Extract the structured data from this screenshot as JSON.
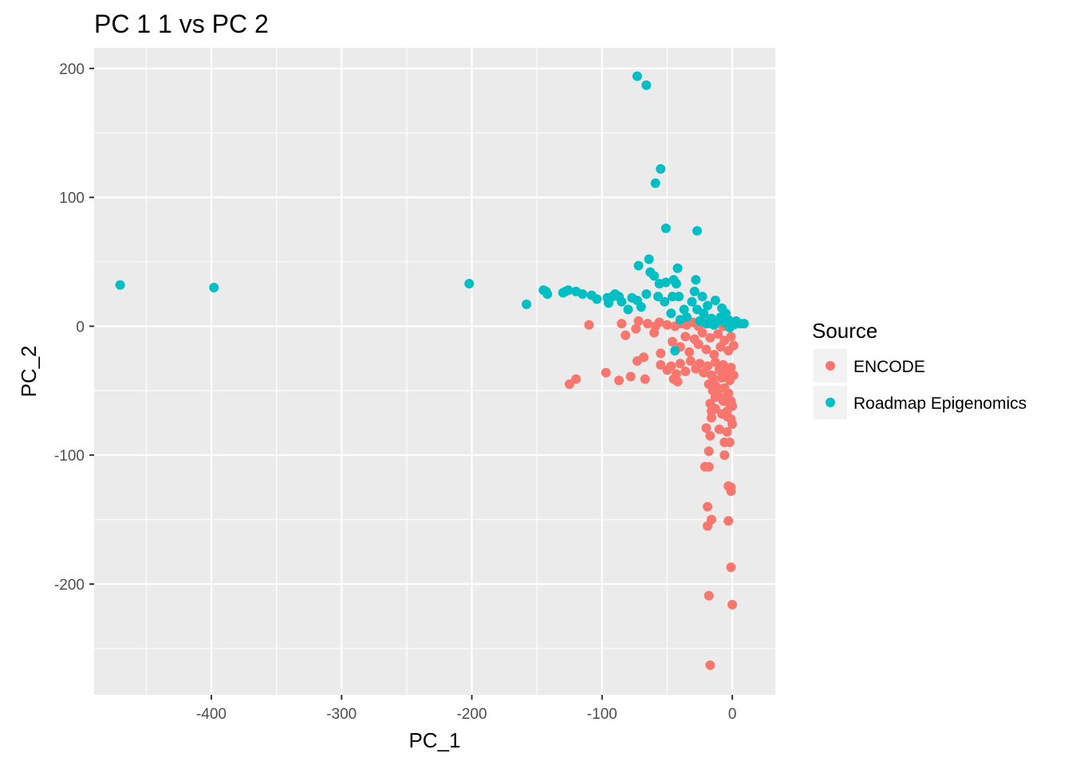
{
  "chart_data": {
    "type": "scatter",
    "title": "PC 1  1 vs PC 2",
    "xlabel": "PC_1",
    "ylabel": "PC_2",
    "xlim": [
      -490,
      33
    ],
    "ylim": [
      -286,
      216
    ],
    "x_ticks": [
      -400,
      -300,
      -200,
      -100,
      0
    ],
    "y_ticks": [
      200,
      100,
      0,
      -100,
      -200
    ],
    "x_minor": [
      -450,
      -350,
      -250,
      -150,
      -50
    ],
    "y_minor": [
      150,
      50,
      -50,
      -150,
      -250
    ],
    "grid": true,
    "legend": {
      "title": "Source",
      "position": "right"
    },
    "colors": {
      "panel": "#ebebeb",
      "grid": "#ffffff",
      "ENCODE": "#F8766D",
      "Roadmap Epigenomics": "#00BFC4"
    },
    "series": [
      {
        "name": "ENCODE",
        "color": "#F8766D",
        "points": [
          [
            -110,
            1
          ],
          [
            -85,
            2
          ],
          [
            -72,
            4
          ],
          [
            -65,
            2
          ],
          [
            -59,
            0
          ],
          [
            -74,
            -2
          ],
          [
            -56,
            3
          ],
          [
            -50,
            1
          ],
          [
            -44,
            0
          ],
          [
            -39,
            2
          ],
          [
            -35,
            1
          ],
          [
            -30,
            3
          ],
          [
            -26,
            0
          ],
          [
            -22,
            4
          ],
          [
            -18,
            2
          ],
          [
            -14,
            1
          ],
          [
            -11,
            3
          ],
          [
            -7,
            0
          ],
          [
            -4,
            2
          ],
          [
            -1,
            1
          ],
          [
            -82,
            -7
          ],
          [
            -60,
            -5
          ],
          [
            -55,
            -21
          ],
          [
            -46,
            -12
          ],
          [
            -40,
            -16
          ],
          [
            -36,
            -8
          ],
          [
            -33,
            -20
          ],
          [
            -29,
            -10
          ],
          [
            -26,
            -14
          ],
          [
            -23,
            -5
          ],
          [
            -20,
            -18
          ],
          [
            -17,
            -9
          ],
          [
            -14,
            -22
          ],
          [
            -11,
            -6
          ],
          [
            -9,
            -16
          ],
          [
            -6,
            -11
          ],
          [
            -3,
            -19
          ],
          [
            -1,
            -8
          ],
          [
            1,
            -15
          ],
          [
            -73,
            -27
          ],
          [
            -68,
            -24
          ],
          [
            -55,
            -30
          ],
          [
            -50,
            -34
          ],
          [
            -47,
            -31
          ],
          [
            -43,
            -37
          ],
          [
            -40,
            -29
          ],
          [
            -36,
            -35
          ],
          [
            -32,
            -27
          ],
          [
            -28,
            -33
          ],
          [
            -25,
            -29
          ],
          [
            -22,
            -36
          ],
          [
            -19,
            -31
          ],
          [
            -16,
            -38
          ],
          [
            -13,
            -28
          ],
          [
            -10,
            -34
          ],
          [
            -7,
            -30
          ],
          [
            -4,
            -36
          ],
          [
            -1,
            -32
          ],
          [
            1,
            -38
          ],
          [
            -97,
            -36
          ],
          [
            -120,
            -41
          ],
          [
            -125,
            -45
          ],
          [
            -87,
            -42
          ],
          [
            -78,
            -39
          ],
          [
            -67,
            -41
          ],
          [
            -45,
            -41
          ],
          [
            -42,
            -43
          ],
          [
            -18,
            -45
          ],
          [
            -15,
            -50
          ],
          [
            -12,
            -47
          ],
          [
            -9,
            -55
          ],
          [
            -6,
            -48
          ],
          [
            -3,
            -52
          ],
          [
            -1,
            -58
          ],
          [
            0,
            -62
          ],
          [
            -17,
            -60
          ],
          [
            -13,
            -64
          ],
          [
            -8,
            -68
          ],
          [
            -4,
            -66
          ],
          [
            -1,
            -72
          ],
          [
            0,
            -76
          ],
          [
            -16,
            -71
          ],
          [
            -10,
            -80
          ],
          [
            -4,
            -82
          ],
          [
            -2,
            -90
          ],
          [
            -20,
            -79
          ],
          [
            -17,
            -85
          ],
          [
            -6,
            -90
          ],
          [
            -18,
            -97
          ],
          [
            -6,
            -100
          ],
          [
            -21,
            -109
          ],
          [
            -18,
            -109
          ],
          [
            -3,
            -124
          ],
          [
            -1,
            -125
          ],
          [
            -1,
            -128
          ],
          [
            -19,
            -140
          ],
          [
            -16,
            -150
          ],
          [
            -19,
            -155
          ],
          [
            -3,
            -151
          ],
          [
            -1,
            -187
          ],
          [
            -18,
            -209
          ],
          [
            0,
            -216
          ],
          [
            -17,
            -263
          ],
          [
            -2,
            -42
          ],
          [
            -5,
            -55
          ],
          [
            -8,
            -40
          ],
          [
            -11,
            -49
          ],
          [
            -14,
            -41
          ],
          [
            -4,
            -70
          ],
          [
            -2,
            -60
          ],
          [
            -7,
            -58
          ],
          [
            -13,
            -55
          ],
          [
            -16,
            -66
          ]
        ]
      },
      {
        "name": "Roadmap Epigenomics",
        "color": "#00BFC4",
        "points": [
          [
            -470,
            32
          ],
          [
            -398,
            30
          ],
          [
            -202,
            33
          ],
          [
            -158,
            17
          ],
          [
            -145,
            28
          ],
          [
            -143,
            27
          ],
          [
            -142,
            25
          ],
          [
            -130,
            26
          ],
          [
            -128,
            27
          ],
          [
            -126,
            28
          ],
          [
            -120,
            27
          ],
          [
            -115,
            25
          ],
          [
            -108,
            24
          ],
          [
            -104,
            21
          ],
          [
            -96,
            22
          ],
          [
            -95,
            18
          ],
          [
            -92,
            23
          ],
          [
            -90,
            25
          ],
          [
            -87,
            23
          ],
          [
            -85,
            19
          ],
          [
            -80,
            13
          ],
          [
            -77,
            22
          ],
          [
            -73,
            20
          ],
          [
            -70,
            15
          ],
          [
            -66,
            25
          ],
          [
            -73,
            194
          ],
          [
            -66,
            187
          ],
          [
            -55,
            122
          ],
          [
            -59,
            111
          ],
          [
            -51,
            76
          ],
          [
            -27,
            74
          ],
          [
            -64,
            52
          ],
          [
            -72,
            47
          ],
          [
            -42,
            45
          ],
          [
            -63,
            42
          ],
          [
            -60,
            39
          ],
          [
            -28,
            36
          ],
          [
            -56,
            33
          ],
          [
            -51,
            34
          ],
          [
            -45,
            36
          ],
          [
            -43,
            33
          ],
          [
            -29,
            27
          ],
          [
            -23,
            23
          ],
          [
            -57,
            23
          ],
          [
            -52,
            19
          ],
          [
            -46,
            23
          ],
          [
            -41,
            23
          ],
          [
            -37,
            13
          ],
          [
            -47,
            10
          ],
          [
            -31,
            19
          ],
          [
            -27,
            13
          ],
          [
            -22,
            10
          ],
          [
            -19,
            16
          ],
          [
            -13,
            20
          ],
          [
            -8,
            14
          ],
          [
            -5,
            10
          ],
          [
            -16,
            6
          ],
          [
            -12,
            4
          ],
          [
            -9,
            7
          ],
          [
            -6,
            3
          ],
          [
            -3,
            5
          ],
          [
            -1,
            2
          ],
          [
            1,
            1
          ],
          [
            3,
            4
          ],
          [
            6,
            2
          ],
          [
            9,
            2
          ],
          [
            -2,
            -1
          ],
          [
            -35,
            7
          ],
          [
            -40,
            5
          ],
          [
            -44,
            -19
          ],
          [
            -25,
            4
          ],
          [
            -20,
            2
          ],
          [
            -14,
            1
          ]
        ]
      }
    ]
  }
}
